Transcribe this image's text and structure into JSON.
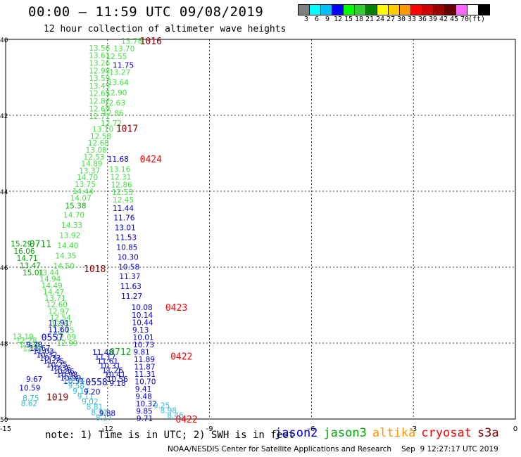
{
  "header": {
    "title": "00:00 – 11:59 UTC 09/08/2019",
    "subtitle": "12 hour collection of altimeter wave heights"
  },
  "color_scale": {
    "unit": "(ft)",
    "swatches": [
      "#7f7f7f",
      "#00ffff",
      "#00bfff",
      "#0000ff",
      "#00ff00",
      "#33cc33",
      "#008000",
      "#ffff00",
      "#ffcc00",
      "#ff9900",
      "#ff0000",
      "#cc0000",
      "#990000",
      "#660000",
      "#ff66ff",
      "#ffffff",
      "#000000"
    ],
    "labels": [
      "3",
      "6",
      "9",
      "12",
      "15",
      "18",
      "21",
      "24",
      "27",
      "30",
      "33",
      "36",
      "39",
      "42",
      "45",
      "70"
    ]
  },
  "axes": {
    "x_ticks": [
      "-15",
      "-12",
      "-9",
      "-6",
      "-3",
      "0"
    ],
    "y_ticks": [
      "40",
      "42",
      "44",
      "46",
      "48",
      "50"
    ],
    "lon_range": [
      -15,
      0
    ],
    "lat_range": [
      40,
      50
    ]
  },
  "time_labels": [
    {
      "text": "1016",
      "lon": -11.05,
      "lat": 40.04,
      "sat": "s3a_dark"
    },
    {
      "text": "1017",
      "lon": -11.75,
      "lat": 42.34,
      "sat": "s3a_dark"
    },
    {
      "text": "0424",
      "lon": -11.05,
      "lat": 43.15,
      "sat": "s3a"
    },
    {
      "text": "0711",
      "lon": -14.3,
      "lat": 45.38,
      "sat": "jason3"
    },
    {
      "text": "1018",
      "lon": -12.7,
      "lat": 46.04,
      "sat": "s3a_dark"
    },
    {
      "text": "0423",
      "lon": -10.3,
      "lat": 47.06,
      "sat": "s3a"
    },
    {
      "text": "0557",
      "lon": -13.95,
      "lat": 47.84,
      "sat": "jason2"
    },
    {
      "text": "0712",
      "lon": -11.95,
      "lat": 48.22,
      "sat": "jason3"
    },
    {
      "text": "0422",
      "lon": -10.15,
      "lat": 48.34,
      "sat": "s3a"
    },
    {
      "text": "0558",
      "lon": -12.65,
      "lat": 49.02,
      "sat": "jason2"
    },
    {
      "text": "1019",
      "lon": -13.8,
      "lat": 49.42,
      "sat": "s3a_dark"
    },
    {
      "text": "0422",
      "lon": -10.0,
      "lat": 50.0,
      "sat": "s3a"
    }
  ],
  "tracks": [
    {
      "sat": "jason3_light",
      "lon_start": -11.6,
      "lon_end": -12.05,
      "values": [
        "13.78",
        "13.70",
        "12.55"
      ],
      "lat_start": 40.04,
      "lat_end": 40.44
    },
    {
      "sat": "jason3_light",
      "lon_start": -12.55,
      "lon_end": -12.55,
      "values": [
        "13.56",
        "13.61",
        "13.26",
        "12.98",
        "13.59",
        "13.45",
        "12.65",
        "12.87",
        "12.69",
        "12.71"
      ],
      "lat_start": 40.22,
      "lat_end": 42.02
    },
    {
      "sat": "jason2",
      "lon_start": -11.85,
      "lon_end": -11.85,
      "values": [
        "11.75"
      ],
      "lat_start": 40.68,
      "lat_end": 40.68
    },
    {
      "sat": "jason3_light",
      "lon_start": -11.95,
      "lon_end": -12.2,
      "values": [
        "13.27",
        "13.64",
        "12.90",
        "12.63",
        "12.86",
        "12.72"
      ],
      "lat_start": 40.86,
      "lat_end": 42.2
    },
    {
      "sat": "jason3_light",
      "lon_start": -12.45,
      "lon_end": -13.1,
      "values": [
        "13.10",
        "12.58",
        "12.68",
        "13.08",
        "12.53",
        "14.89",
        "13.37",
        "14.70",
        "13.75",
        "14.44",
        "14.07"
      ],
      "lat_start": 42.36,
      "lat_end": 44.18
    },
    {
      "sat": "jason2",
      "lon_start": -12.0,
      "lon_end": -12.0,
      "values": [
        "11.68"
      ],
      "lat_start": 43.15,
      "lat_end": 43.15
    },
    {
      "sat": "jason3_light",
      "lon_start": -11.95,
      "lon_end": -11.85,
      "values": [
        "13.16",
        "12.31",
        "12.86",
        "12.53",
        "12.45"
      ],
      "lat_start": 43.42,
      "lat_end": 44.22
    },
    {
      "sat": "jason3",
      "lon_start": -13.25,
      "lon_end": -13.25,
      "values": [
        "15.38"
      ],
      "lat_start": 44.38,
      "lat_end": 44.38
    },
    {
      "sat": "jason3_light",
      "lon_start": -13.3,
      "lon_end": -13.6,
      "values": [
        "14.70",
        "14.33",
        "13.92",
        "14.40",
        "14.35",
        "14.50"
      ],
      "lat_start": 44.62,
      "lat_end": 45.96
    },
    {
      "sat": "jason2",
      "lon_start": -11.85,
      "lon_end": -11.6,
      "values": [
        "11.44",
        "11.76",
        "13.01",
        "11.53",
        "10.85",
        "10.30",
        "10.58",
        "11.37",
        "11.63",
        "11.27"
      ],
      "lat_start": 44.44,
      "lat_end": 46.76
    },
    {
      "sat": "jason3",
      "lon_start": -14.85,
      "lon_end": -14.5,
      "values": [
        "15.29",
        "16.06",
        "14.71",
        "13.47",
        "15.01"
      ],
      "lat_start": 45.38,
      "lat_end": 46.14
    },
    {
      "sat": "jason3_light",
      "lon_start": -14.05,
      "lon_end": -13.5,
      "values": [
        "13.44",
        "14.94",
        "14.49",
        "14.47",
        "13.71",
        "12.60",
        "12.97",
        "12.54",
        "13.67",
        "13.15",
        "12.09",
        "12.99"
      ],
      "lat_start": 46.14,
      "lat_end": 48.0
    },
    {
      "sat": "jason2",
      "lon_start": -11.3,
      "lon_end": -11.15,
      "values": [
        "10.08",
        "10.14",
        "10.44",
        "9.13",
        "10.01",
        "10.73",
        "9.81",
        "11.89",
        "11.87",
        "11.31",
        "10.70",
        "9.41",
        "9.48",
        "10.32",
        "9.85",
        "9.71"
      ],
      "lat_start": 47.06,
      "lat_end": 49.98
    },
    {
      "sat": "jason2",
      "lon_start": -13.75,
      "lon_end": -13.75,
      "values": [
        "11.91",
        "11.60"
      ],
      "lat_start": 47.46,
      "lat_end": 47.64
    },
    {
      "sat": "jason3_light",
      "lon_start": -14.8,
      "lon_end": -14.5,
      "values": [
        "13.19",
        "12.28",
        "12.35",
        "12.55"
      ],
      "lat_start": 47.82,
      "lat_end": 48.14
    },
    {
      "sat": "jason2",
      "lon_start": -14.4,
      "lon_end": -13.3,
      "values": [
        "9.78",
        "11.67",
        "11.03",
        "10.32",
        "10.33",
        "11.75",
        "10.25",
        "10.36",
        "10.86",
        "10.98",
        "10.99",
        "10.51"
      ],
      "lat_start": 48.04,
      "lat_end": 49.0
    },
    {
      "sat": "jason2",
      "lon_start": -12.45,
      "lon_end": -11.95,
      "values": [
        "11.48",
        "11.17",
        "11.61",
        "10.31",
        "11.26",
        "10.41",
        "10.56",
        "9.18"
      ],
      "lat_start": 48.24,
      "lat_end": 49.06
    },
    {
      "sat": "jason2",
      "lon_start": -14.4,
      "lon_end": -14.6,
      "values": [
        "9.67",
        "10.59"
      ],
      "lat_start": 48.94,
      "lat_end": 49.18
    },
    {
      "sat": "jason2_light",
      "lon_start": -13.3,
      "lon_end": -12.35,
      "values": [
        "10.74",
        "9.58",
        "9.17",
        "9.11",
        "9.02",
        "8.81",
        "8.37",
        "8.17"
      ],
      "lat_start": 48.98,
      "lat_end": 49.96
    },
    {
      "sat": "jason2",
      "lon_start": -12.7,
      "lon_end": -12.25,
      "values": [
        "9.20",
        "9.88"
      ],
      "lat_start": 49.28,
      "lat_end": 49.84
    },
    {
      "sat": "jason2_light",
      "lon_start": -14.5,
      "lon_end": -14.55,
      "values": [
        "8.75",
        "8.62"
      ],
      "lat_start": 49.44,
      "lat_end": 49.58
    },
    {
      "sat": "jason2_light",
      "lon_start": -10.65,
      "lon_end": -10.25,
      "values": [
        "9.25",
        "8.98",
        "8.46"
      ],
      "lat_start": 49.64,
      "lat_end": 49.9
    }
  ],
  "note": "note: 1) Time is in UTC; 2) SWH is in feet",
  "legend": [
    {
      "name": "jason2",
      "color": "#0000cc"
    },
    {
      "name": "jason3",
      "color": "#00aa00"
    },
    {
      "name": "altika",
      "color": "#ff9900"
    },
    {
      "name": "cryosat",
      "color": "#ff0000"
    },
    {
      "name": "s3a",
      "color": "#880000"
    }
  ],
  "footer": {
    "credit": "NOAA/NESDIS Center for Satellite Applications and Research",
    "timestamp": "Sep  9 12:27:17 UTC 2019"
  },
  "sat_colors": {
    "jason2": "#0000cc",
    "jason2_light": "#33bbdd",
    "jason3": "#00aa00",
    "jason3_light": "#44dd44",
    "s3a": "#ff0000",
    "s3a_dark": "#880000"
  }
}
